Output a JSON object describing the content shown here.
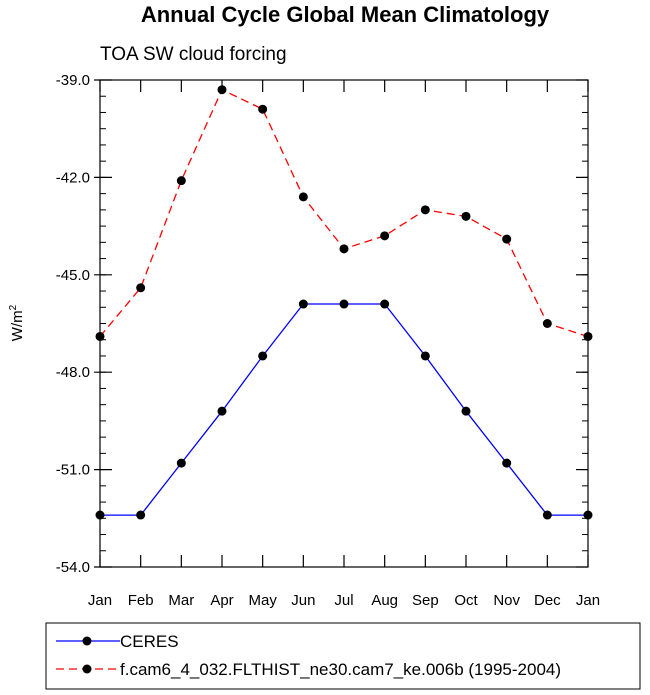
{
  "chart_data": {
    "type": "line",
    "title": "Annual Cycle Global Mean Climatology",
    "subtitle": "TOA SW cloud forcing",
    "xlabel": "",
    "ylabel": "W/m",
    "ylabel_superscript": "2",
    "categories": [
      "Jan",
      "Feb",
      "Mar",
      "Apr",
      "May",
      "Jun",
      "Jul",
      "Aug",
      "Sep",
      "Oct",
      "Nov",
      "Dec",
      "Jan"
    ],
    "ylim": [
      -54.0,
      -39.0
    ],
    "yticks": [
      -54.0,
      -51.0,
      -48.0,
      -45.0,
      -42.0,
      -39.0
    ],
    "ytick_labels": [
      "-54.0",
      "-51.0",
      "-48.0",
      "-45.0",
      "-42.0",
      "-39.0"
    ],
    "yminor_step": 0.5,
    "grid": false,
    "legend_position": "bottom",
    "series": [
      {
        "name": "CERES",
        "color": "#0000ff",
        "style": "solid",
        "values": [
          -52.4,
          -52.4,
          -50.8,
          -49.2,
          -47.5,
          -45.9,
          -45.9,
          -45.9,
          -47.5,
          -49.2,
          -50.8,
          -52.4,
          -52.4
        ]
      },
      {
        "name": "f.cam6_4_032.FLTHIST_ne30.cam7_ke.006b (1995-2004)",
        "color": "#ff0000",
        "style": "dashed",
        "values": [
          -46.9,
          -45.4,
          -42.1,
          -39.3,
          -39.9,
          -42.6,
          -44.2,
          -43.8,
          -43.0,
          -43.2,
          -43.9,
          -46.5,
          -46.9
        ]
      }
    ]
  }
}
